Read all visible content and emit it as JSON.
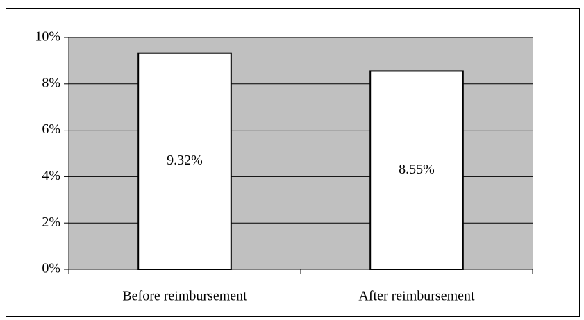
{
  "chart_data": {
    "type": "bar",
    "categories": [
      "Before reimbursement",
      "After reimbursement"
    ],
    "values": [
      9.32,
      8.55
    ],
    "value_labels": [
      "9.32%",
      "8.55%"
    ],
    "color": "#ffffff",
    "plot_background": "#c0c0c0",
    "ylim": [
      0,
      10
    ],
    "yticks": [
      {
        "value": 0,
        "label": "0%"
      },
      {
        "value": 2,
        "label": "2%"
      },
      {
        "value": 4,
        "label": "4%"
      },
      {
        "value": 6,
        "label": "6%"
      },
      {
        "value": 8,
        "label": "8%"
      },
      {
        "value": 10,
        "label": "10%"
      }
    ],
    "grid": true
  }
}
